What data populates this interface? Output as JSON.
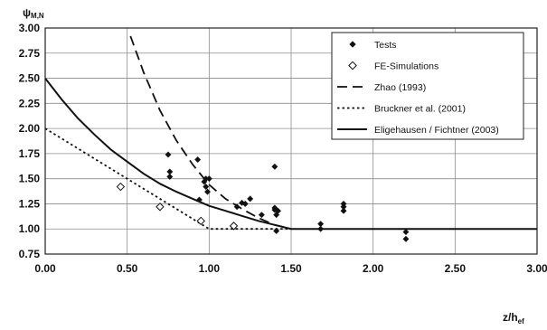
{
  "chart_data": {
    "type": "scatter",
    "ylabel": "ψ",
    "ylabel_sub": "M,N",
    "xlabel": "z/h",
    "xlabel_sub": "ef",
    "xlim": [
      0,
      3
    ],
    "ylim": [
      0.75,
      3
    ],
    "xticks": [
      "0.00",
      "0.50",
      "1.00",
      "1.50",
      "2.00",
      "2.50",
      "3.00"
    ],
    "yticks": [
      "0.75",
      "1.00",
      "1.25",
      "1.50",
      "1.75",
      "2.00",
      "2.25",
      "2.50",
      "2.75",
      "3.00"
    ],
    "grid": true,
    "legend_position": "top-right",
    "series": [
      {
        "name": "Tests",
        "kind": "points",
        "marker": "filled-diamond",
        "points": [
          [
            0.75,
            1.74
          ],
          [
            0.76,
            1.57
          ],
          [
            0.76,
            1.52
          ],
          [
            0.93,
            1.69
          ],
          [
            0.94,
            1.29
          ],
          [
            0.97,
            1.47
          ],
          [
            0.98,
            1.5
          ],
          [
            0.98,
            1.42
          ],
          [
            0.99,
            1.37
          ],
          [
            1.0,
            1.5
          ],
          [
            1.17,
            1.22
          ],
          [
            1.2,
            1.26
          ],
          [
            1.22,
            1.25
          ],
          [
            1.25,
            1.3
          ],
          [
            1.32,
            1.14
          ],
          [
            1.4,
            1.62
          ],
          [
            1.4,
            1.21
          ],
          [
            1.4,
            1.19
          ],
          [
            1.41,
            1.14
          ],
          [
            1.41,
            0.98
          ],
          [
            1.42,
            1.18
          ],
          [
            1.68,
            1.05
          ],
          [
            1.68,
            1.0
          ],
          [
            1.82,
            1.25
          ],
          [
            1.82,
            1.22
          ],
          [
            1.82,
            1.18
          ],
          [
            2.2,
            0.97
          ],
          [
            2.2,
            0.9
          ]
        ]
      },
      {
        "name": "FE-Simulations",
        "kind": "points",
        "marker": "open-diamond",
        "points": [
          [
            0.46,
            1.42
          ],
          [
            0.7,
            1.22
          ],
          [
            0.95,
            1.08
          ],
          [
            1.15,
            1.03
          ]
        ]
      },
      {
        "name": "Zhao (1993)",
        "kind": "line",
        "style": "dashed",
        "x": [
          0.52,
          0.6,
          0.7,
          0.8,
          0.9,
          1.0,
          1.1,
          1.2,
          1.3,
          1.4,
          1.5
        ],
        "y": [
          2.92,
          2.56,
          2.18,
          1.88,
          1.64,
          1.44,
          1.3,
          1.2,
          1.11,
          1.04,
          1.0
        ]
      },
      {
        "name": "Bruckner et al. (2001)",
        "kind": "line",
        "style": "dotted",
        "x": [
          0.0,
          0.5,
          1.0,
          1.2,
          1.5
        ],
        "y": [
          2.0,
          1.5,
          1.0,
          1.0,
          1.0
        ]
      },
      {
        "name": "Eligehausen / Fichtner (2003)",
        "kind": "line",
        "style": "solid",
        "x": [
          0.0,
          0.1,
          0.2,
          0.3,
          0.4,
          0.5,
          0.6,
          0.7,
          0.8,
          0.9,
          1.0,
          1.1,
          1.2,
          1.3,
          1.4,
          1.5,
          3.0
        ],
        "y": [
          2.5,
          2.29,
          2.1,
          1.94,
          1.79,
          1.67,
          1.55,
          1.45,
          1.37,
          1.3,
          1.23,
          1.18,
          1.13,
          1.08,
          1.04,
          1.0,
          1.0
        ]
      }
    ]
  }
}
